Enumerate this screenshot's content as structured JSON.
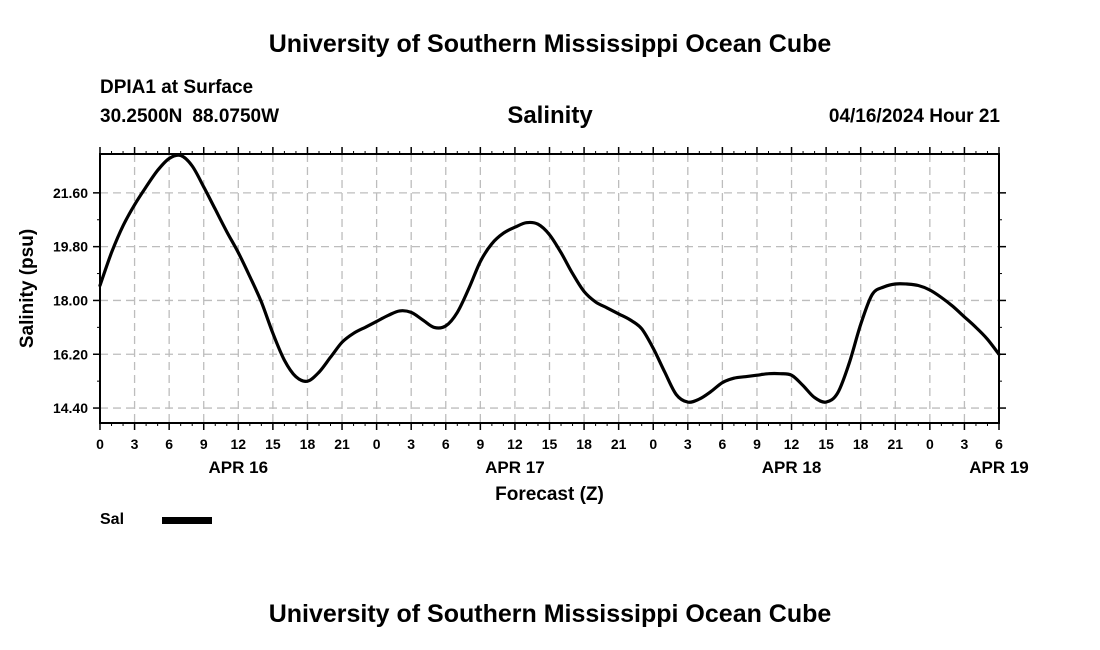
{
  "header": {
    "title": "University of Southern Mississippi Ocean Cube",
    "station": "DPIA1 at Surface",
    "latitude": "30.2500N",
    "longitude": "88.0750W",
    "variable": "Salinity",
    "datetime": "04/16/2024 Hour 21"
  },
  "footer": {
    "title": "University of Southern Mississippi Ocean Cube"
  },
  "legend": {
    "label": "Sal"
  },
  "chart_data": {
    "type": "line",
    "title": "Salinity",
    "xlabel": "Forecast (Z)",
    "ylabel": "Salinity (psu)",
    "x_unit": "forecast hour from APR 16 00Z",
    "xlim": [
      0,
      78
    ],
    "ylim": [
      13.9,
      22.9
    ],
    "grid": true,
    "legend_position": "bottom-left",
    "x_ticks": [
      0,
      3,
      6,
      9,
      12,
      15,
      18,
      21,
      24,
      27,
      30,
      33,
      36,
      39,
      42,
      45,
      48,
      51,
      54,
      57,
      60,
      63,
      66,
      69,
      72,
      75,
      78
    ],
    "x_tick_labels": [
      "0",
      "3",
      "6",
      "9",
      "12",
      "15",
      "18",
      "21",
      "0",
      "3",
      "6",
      "9",
      "12",
      "15",
      "18",
      "21",
      "0",
      "3",
      "6",
      "9",
      "12",
      "15",
      "18",
      "21",
      "0",
      "3",
      "6"
    ],
    "y_ticks": [
      14.4,
      16.2,
      18.0,
      19.8,
      21.6
    ],
    "y_tick_labels": [
      "14.40",
      "16.20",
      "18.00",
      "19.80",
      "21.60"
    ],
    "date_labels": [
      {
        "x": 12,
        "label": "APR 16"
      },
      {
        "x": 36,
        "label": "APR 17"
      },
      {
        "x": 60,
        "label": "APR 18"
      },
      {
        "x": 78,
        "label": "APR 19"
      }
    ],
    "series": [
      {
        "name": "Sal",
        "color": "#000000",
        "x": [
          0,
          1,
          2,
          3,
          4,
          5,
          6,
          7,
          8,
          9,
          10,
          11,
          12,
          13,
          14,
          15,
          16,
          17,
          18,
          19,
          20,
          21,
          22,
          23,
          24,
          25,
          26,
          27,
          28,
          29,
          30,
          31,
          32,
          33,
          34,
          35,
          36,
          37,
          38,
          39,
          40,
          41,
          42,
          43,
          44,
          45,
          46,
          47,
          48,
          49,
          50,
          51,
          52,
          53,
          54,
          55,
          56,
          57,
          58,
          59,
          60,
          61,
          62,
          63,
          64,
          65,
          66,
          67,
          68,
          69,
          70,
          71,
          72,
          73,
          74,
          75,
          76,
          77,
          78
        ],
        "values": [
          18.5,
          19.6,
          20.5,
          21.2,
          21.8,
          22.35,
          22.75,
          22.85,
          22.5,
          21.8,
          21.05,
          20.3,
          19.6,
          18.8,
          17.95,
          16.9,
          16.0,
          15.45,
          15.3,
          15.6,
          16.1,
          16.6,
          16.9,
          17.1,
          17.3,
          17.5,
          17.65,
          17.6,
          17.35,
          17.1,
          17.15,
          17.6,
          18.4,
          19.3,
          19.9,
          20.25,
          20.45,
          20.6,
          20.55,
          20.2,
          19.6,
          18.9,
          18.3,
          17.95,
          17.75,
          17.55,
          17.35,
          17.05,
          16.4,
          15.6,
          14.85,
          14.6,
          14.7,
          14.95,
          15.25,
          15.4,
          15.45,
          15.5,
          15.55,
          15.55,
          15.5,
          15.15,
          14.75,
          14.6,
          14.9,
          15.9,
          17.2,
          18.2,
          18.45,
          18.55,
          18.55,
          18.5,
          18.35,
          18.1,
          17.8,
          17.45,
          17.1,
          16.7,
          16.2
        ]
      }
    ]
  }
}
